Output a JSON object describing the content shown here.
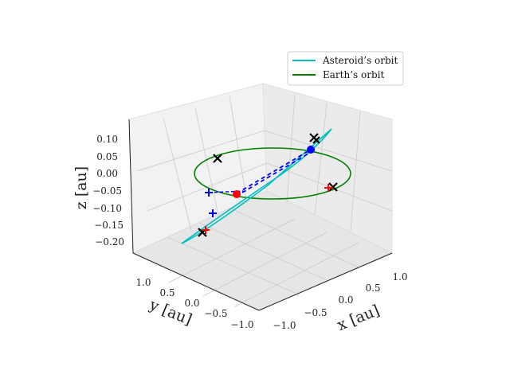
{
  "chart_data": {
    "type": "3d-line",
    "legend": {
      "placement": "top-right",
      "entries": [
        {
          "label": "Asteroid’s orbit",
          "color": "#00bfbf"
        },
        {
          "label": "Earth’s orbit",
          "color": "#008000"
        }
      ]
    },
    "axes": {
      "x": {
        "label": "x [au]",
        "ticks": [
          "−1.0",
          "−0.5",
          "0.0",
          "0.5",
          "1.0"
        ]
      },
      "y": {
        "label": "y [au]",
        "ticks": [
          "1.0",
          "0.5",
          "0.0",
          "−0.5",
          "−1.0"
        ]
      },
      "z": {
        "label": "z [au]",
        "ticks": [
          "0.10",
          "0.05",
          "0.00",
          "−0.05",
          "−0.10",
          "−0.15",
          "−0.20"
        ]
      }
    },
    "grid": true
  }
}
